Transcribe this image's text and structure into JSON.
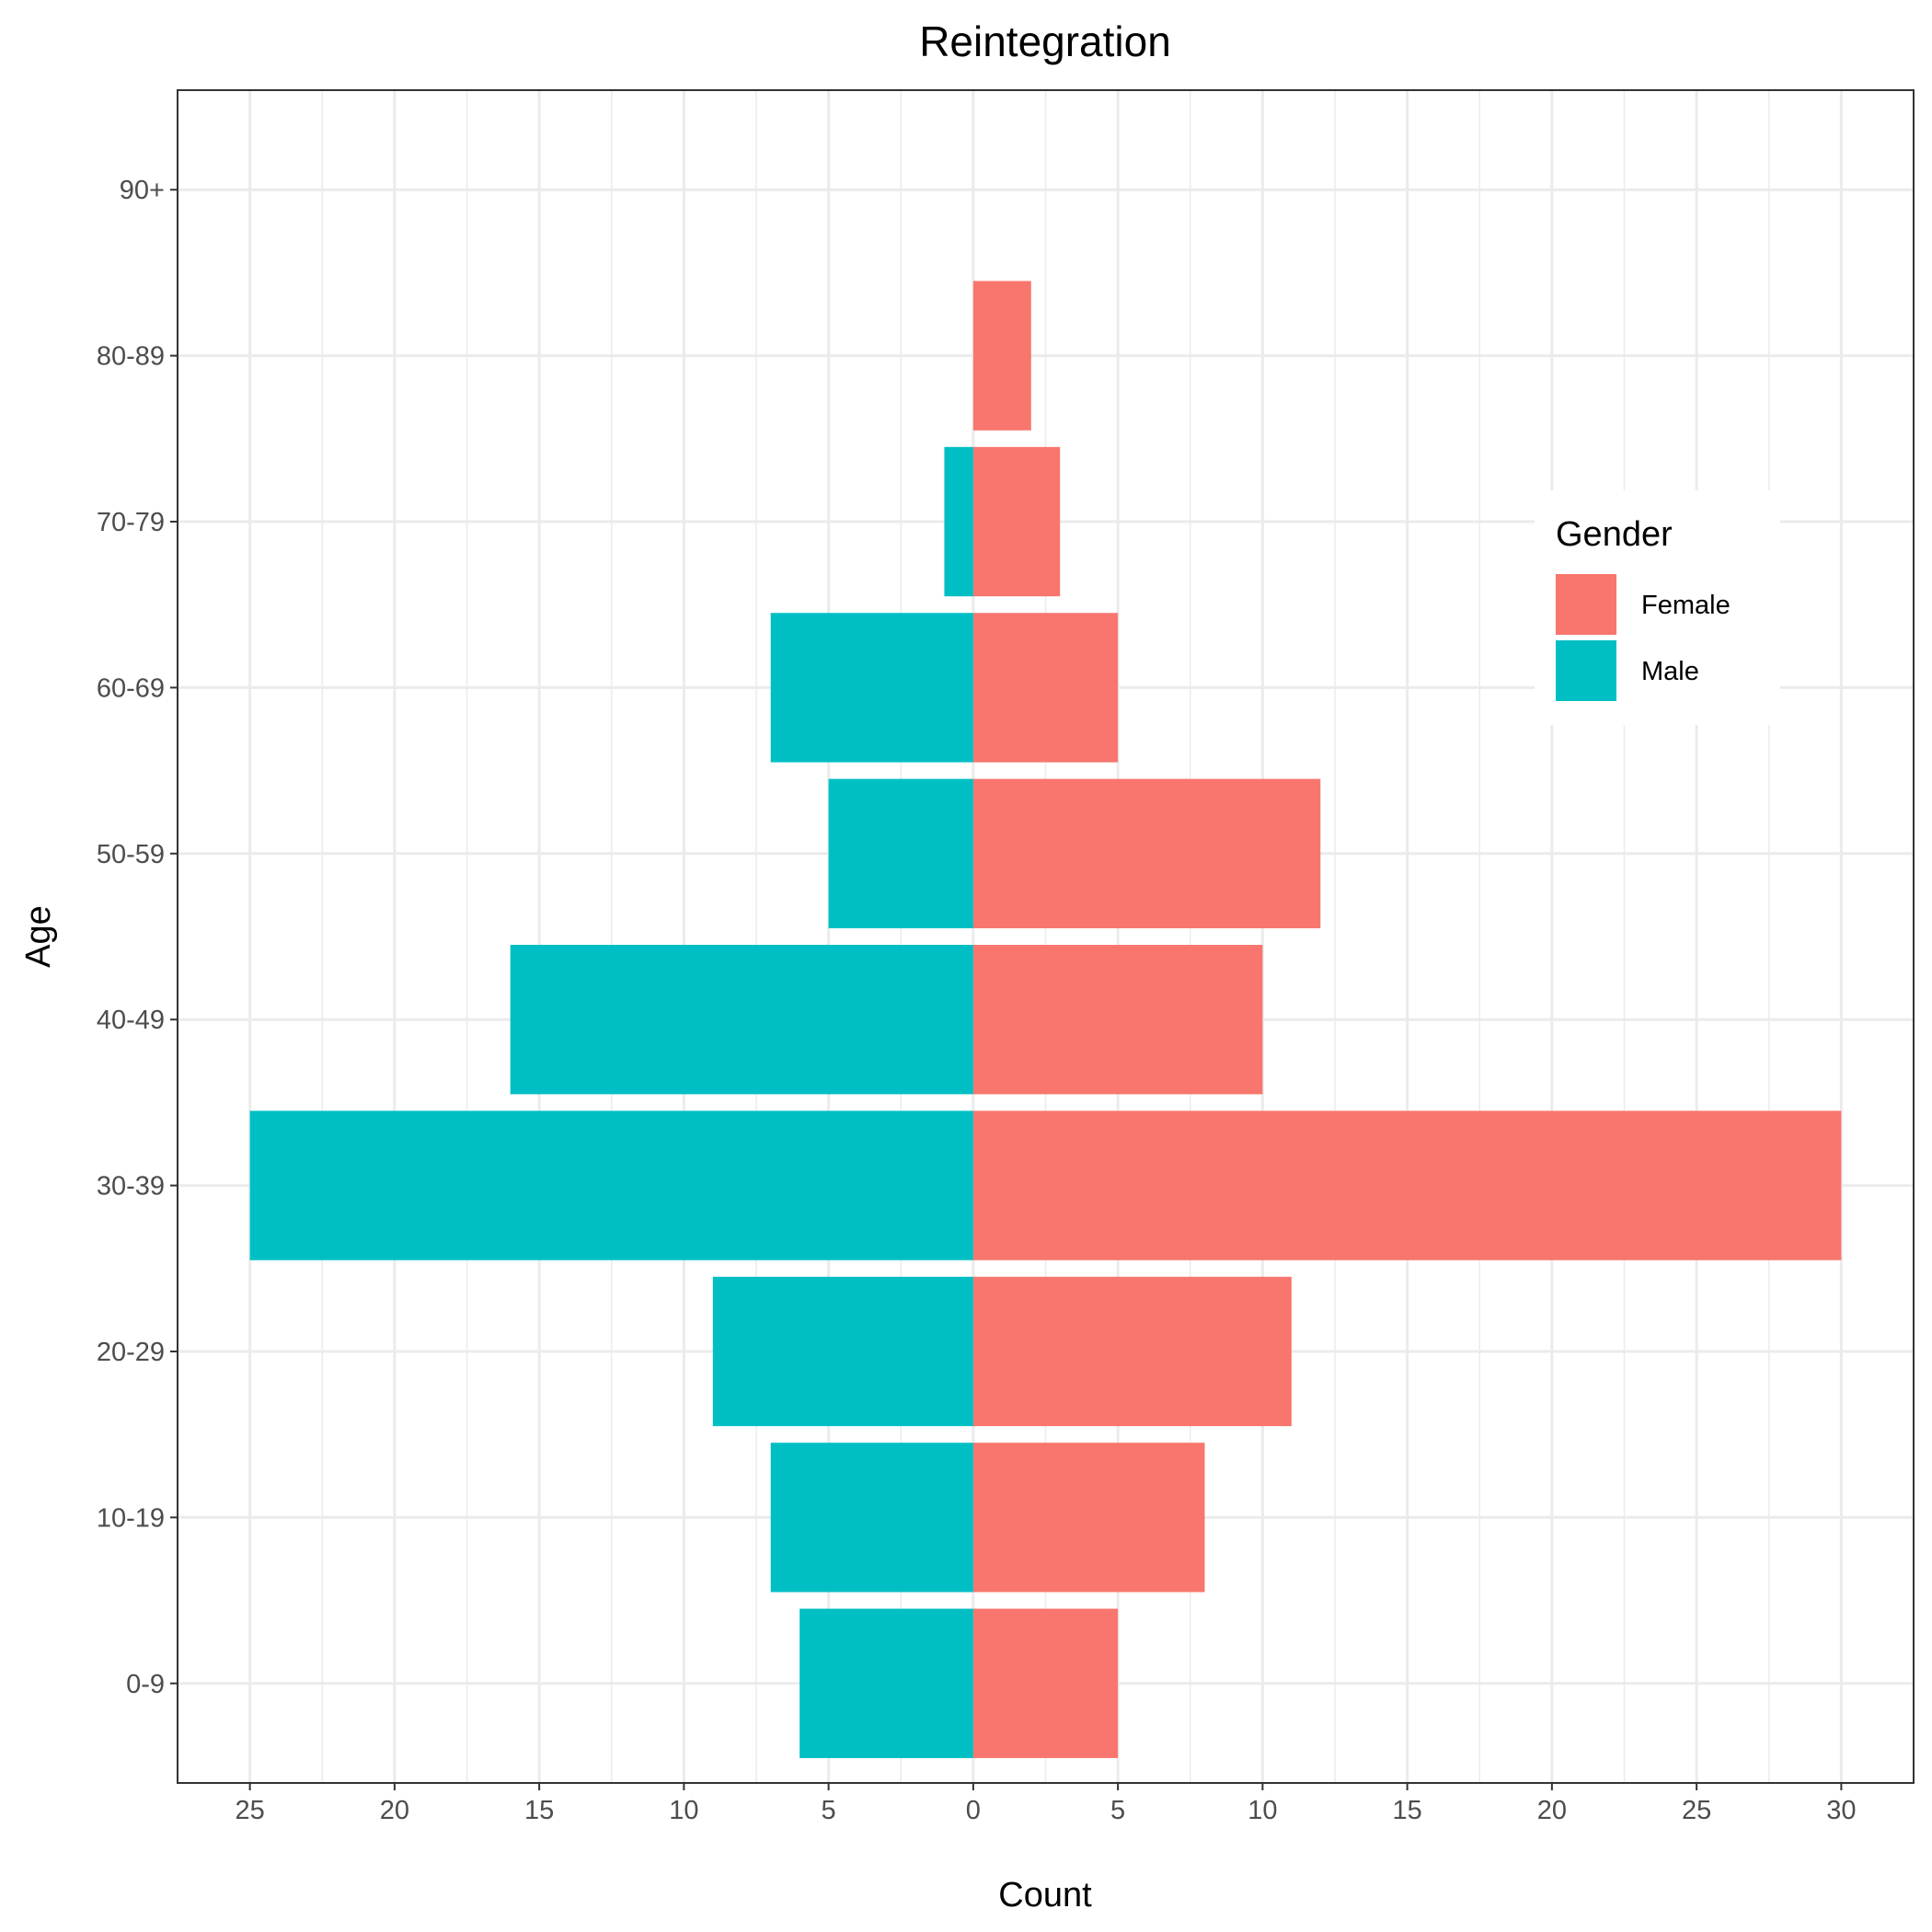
{
  "chart_data": {
    "type": "bar",
    "orientation": "horizontal",
    "layout": "population-pyramid",
    "title": "Reintegration",
    "xlabel": "Count",
    "ylabel": "Age",
    "categories": [
      "0-9",
      "10-19",
      "20-29",
      "30-39",
      "40-49",
      "50-59",
      "60-69",
      "70-79",
      "80-89",
      "90+"
    ],
    "series": [
      {
        "name": "Female",
        "side": "right",
        "color": "#F8766D",
        "values": [
          5,
          8,
          11,
          30,
          10,
          12,
          5,
          3,
          2,
          0
        ]
      },
      {
        "name": "Male",
        "side": "left",
        "color": "#00BFC4",
        "values": [
          6,
          7,
          9,
          25,
          16,
          5,
          7,
          1,
          0,
          0
        ]
      }
    ],
    "xlim": [
      -27.5,
      32.5
    ],
    "x_ticks": [
      -25,
      -20,
      -15,
      -10,
      -5,
      0,
      5,
      10,
      15,
      20,
      25,
      30
    ],
    "x_tick_labels": [
      "25",
      "20",
      "15",
      "10",
      "5",
      "0",
      "5",
      "10",
      "15",
      "20",
      "25",
      "30"
    ],
    "grid": true,
    "legend": {
      "title": "Gender",
      "placement": "right-inside",
      "items": [
        "Female",
        "Male"
      ]
    }
  }
}
